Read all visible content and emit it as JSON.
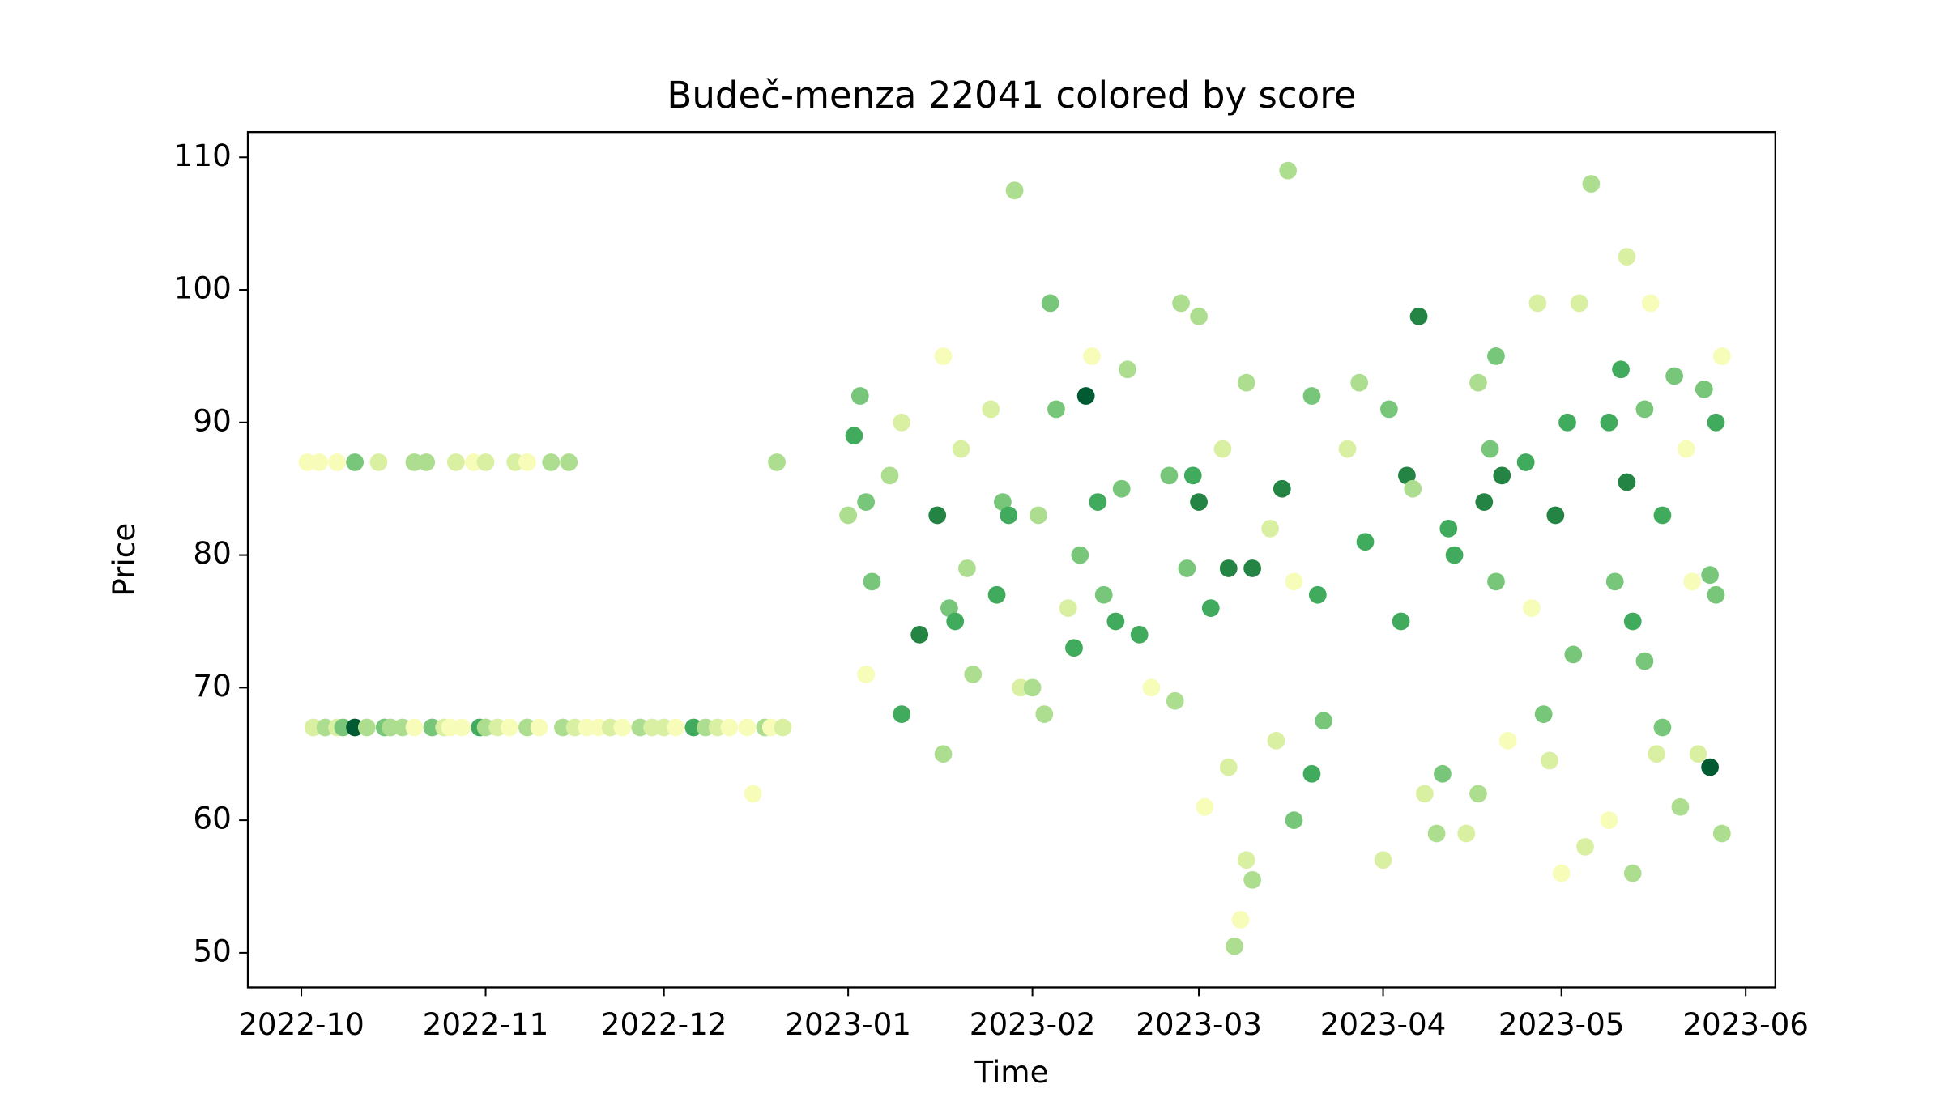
{
  "chart_data": {
    "type": "scatter",
    "title": "Budeč-menza 22041 colored by score",
    "x_label": "Time",
    "y_label": "Price",
    "x": [
      "2022-10-03",
      "2022-10-05",
      "2022-10-07",
      "2022-10-08",
      "2022-10-10",
      "2022-10-12",
      "2022-10-15",
      "2022-10-16",
      "2022-10-18",
      "2022-10-20",
      "2022-10-23",
      "2022-10-25",
      "2022-10-26",
      "2022-10-28",
      "2022-10-31",
      "2022-11-01",
      "2022-11-03",
      "2022-11-05",
      "2022-11-08",
      "2022-11-10",
      "2022-11-14",
      "2022-11-16",
      "2022-11-18",
      "2022-11-20",
      "2022-11-22",
      "2022-11-24",
      "2022-11-27",
      "2022-11-29",
      "2022-12-01",
      "2022-12-03",
      "2022-12-06",
      "2022-12-08",
      "2022-12-10",
      "2022-12-12",
      "2022-12-15",
      "2022-12-18",
      "2022-12-19",
      "2022-12-21",
      "2022-12-16",
      "2022-10-02",
      "2022-10-04",
      "2022-10-07",
      "2022-10-10",
      "2022-10-14",
      "2022-10-20",
      "2022-10-22",
      "2022-10-27",
      "2022-10-30",
      "2022-11-01",
      "2022-11-06",
      "2022-11-08",
      "2022-11-12",
      "2022-11-15",
      "2022-12-20",
      "2023-01-01",
      "2023-01-02",
      "2023-01-03",
      "2023-01-04",
      "2023-01-04",
      "2023-01-05",
      "2023-01-08",
      "2023-01-10",
      "2023-01-10",
      "2023-01-13",
      "2023-01-16",
      "2023-01-17",
      "2023-01-17",
      "2023-01-18",
      "2023-01-19",
      "2023-01-20",
      "2023-01-21",
      "2023-01-22",
      "2023-01-25",
      "2023-01-26",
      "2023-01-27",
      "2023-01-28",
      "2023-01-29",
      "2023-01-30",
      "2023-02-01",
      "2023-02-02",
      "2023-02-03",
      "2023-02-04",
      "2023-02-05",
      "2023-02-07",
      "2023-02-08",
      "2023-02-09",
      "2023-02-10",
      "2023-02-11",
      "2023-02-12",
      "2023-02-13",
      "2023-02-15",
      "2023-02-16",
      "2023-02-17",
      "2023-02-19",
      "2023-02-21",
      "2023-02-24",
      "2023-02-25",
      "2023-02-26",
      "2023-02-27",
      "2023-02-28",
      "2023-03-01",
      "2023-03-01",
      "2023-03-02",
      "2023-03-03",
      "2023-03-05",
      "2023-03-06",
      "2023-03-06",
      "2023-03-07",
      "2023-03-08",
      "2023-03-09",
      "2023-03-09",
      "2023-03-10",
      "2023-03-10",
      "2023-03-13",
      "2023-03-14",
      "2023-03-15",
      "2023-03-16",
      "2023-03-17",
      "2023-03-17",
      "2023-03-20",
      "2023-03-20",
      "2023-03-21",
      "2023-03-22",
      "2023-03-26",
      "2023-03-28",
      "2023-03-29",
      "2023-04-01",
      "2023-04-02",
      "2023-04-04",
      "2023-04-05",
      "2023-04-06",
      "2023-04-07",
      "2023-04-08",
      "2023-04-10",
      "2023-04-11",
      "2023-04-12",
      "2023-04-13",
      "2023-04-15",
      "2023-04-17",
      "2023-04-17",
      "2023-04-18",
      "2023-04-19",
      "2023-04-20",
      "2023-04-20",
      "2023-04-21",
      "2023-04-22",
      "2023-04-25",
      "2023-04-26",
      "2023-04-27",
      "2023-04-28",
      "2023-04-29",
      "2023-04-30",
      "2023-05-01",
      "2023-05-02",
      "2023-05-03",
      "2023-05-04",
      "2023-05-05",
      "2023-05-06",
      "2023-05-09",
      "2023-05-09",
      "2023-05-10",
      "2023-05-11",
      "2023-05-12",
      "2023-05-12",
      "2023-05-13",
      "2023-05-13",
      "2023-05-15",
      "2023-05-15",
      "2023-05-16",
      "2023-05-17",
      "2023-05-18",
      "2023-05-18",
      "2023-05-20",
      "2023-05-21",
      "2023-05-22",
      "2023-05-23",
      "2023-05-24",
      "2023-05-25",
      "2023-05-26",
      "2023-05-26",
      "2023-05-27",
      "2023-05-27",
      "2023-05-28",
      "2023-05-28"
    ],
    "values": [
      67,
      67,
      67,
      67,
      67,
      67,
      67,
      67,
      67,
      67,
      67,
      67,
      67,
      67,
      67,
      67,
      67,
      67,
      67,
      67,
      67,
      67,
      67,
      67,
      67,
      67,
      67,
      67,
      67,
      67,
      67,
      67,
      67,
      67,
      67,
      67,
      67,
      67,
      62,
      87,
      87,
      87,
      87,
      87,
      87,
      87,
      87,
      87,
      87,
      87,
      87,
      87,
      87,
      87,
      83,
      89,
      92,
      71,
      84,
      78,
      86,
      68,
      90,
      74,
      83,
      65,
      95,
      76,
      75,
      88,
      79,
      71,
      91,
      77,
      84,
      83,
      107.5,
      70,
      70,
      83,
      68,
      99,
      91,
      76,
      73,
      80,
      92,
      95,
      84,
      77,
      75,
      85,
      94,
      74,
      70,
      86,
      69,
      99,
      79,
      86,
      84,
      98,
      61,
      76,
      88,
      64,
      79,
      50.5,
      52.5,
      57,
      93,
      55.5,
      79,
      82,
      66,
      85,
      109,
      60,
      78,
      92,
      63.5,
      77,
      67.5,
      88,
      93,
      81,
      57,
      91,
      75,
      86,
      85,
      98,
      62,
      59,
      63.5,
      82,
      80,
      59,
      62,
      93,
      84,
      88,
      95,
      78,
      86,
      66,
      87,
      76,
      99,
      68,
      64.5,
      83,
      56,
      90,
      72.5,
      99,
      58,
      108,
      60,
      90,
      78,
      94,
      85.5,
      102.5,
      56,
      75,
      72,
      91,
      99,
      65,
      83,
      67,
      93.5,
      61,
      88,
      78,
      65,
      92.5,
      64,
      78.5,
      77,
      90,
      59,
      95
    ],
    "colors": [
      "#d9f0a3",
      "#addd8e",
      "#d9f0a3",
      "#78c679",
      "#005a32",
      "#addd8e",
      "#78c679",
      "#addd8e",
      "#addd8e",
      "#f7fcb9",
      "#78c679",
      "#d9f0a3",
      "#f7fcb9",
      "#f7fcb9",
      "#41ab5d",
      "#addd8e",
      "#d9f0a3",
      "#f7fcb9",
      "#addd8e",
      "#f7fcb9",
      "#addd8e",
      "#d9f0a3",
      "#f7fcb9",
      "#f7fcb9",
      "#d9f0a3",
      "#f7fcb9",
      "#addd8e",
      "#d9f0a3",
      "#d9f0a3",
      "#f7fcb9",
      "#41ab5d",
      "#addd8e",
      "#d9f0a3",
      "#f7fcb9",
      "#f7fcb9",
      "#addd8e",
      "#f7fcb9",
      "#d9f0a3",
      "#f7fcb9",
      "#f7fcb9",
      "#f7fcb9",
      "#f7fcb9",
      "#78c679",
      "#d9f0a3",
      "#addd8e",
      "#addd8e",
      "#d9f0a3",
      "#f7fcb9",
      "#d9f0a3",
      "#d9f0a3",
      "#f7fcb9",
      "#addd8e",
      "#addd8e",
      "#addd8e",
      "#addd8e",
      "#41ab5d",
      "#78c679",
      "#f7fcb9",
      "#78c679",
      "#78c679",
      "#addd8e",
      "#41ab5d",
      "#d9f0a3",
      "#238443",
      "#238443",
      "#addd8e",
      "#f7fcb9",
      "#78c679",
      "#41ab5d",
      "#d9f0a3",
      "#addd8e",
      "#addd8e",
      "#d9f0a3",
      "#41ab5d",
      "#78c679",
      "#41ab5d",
      "#addd8e",
      "#d9f0a3",
      "#addd8e",
      "#addd8e",
      "#addd8e",
      "#78c679",
      "#78c679",
      "#d9f0a3",
      "#41ab5d",
      "#78c679",
      "#005a32",
      "#f7fcb9",
      "#41ab5d",
      "#78c679",
      "#41ab5d",
      "#78c679",
      "#addd8e",
      "#41ab5d",
      "#f7fcb9",
      "#78c679",
      "#addd8e",
      "#addd8e",
      "#78c679",
      "#41ab5d",
      "#238443",
      "#addd8e",
      "#f7fcb9",
      "#41ab5d",
      "#d9f0a3",
      "#d9f0a3",
      "#238443",
      "#addd8e",
      "#f7fcb9",
      "#d9f0a3",
      "#addd8e",
      "#addd8e",
      "#238443",
      "#d9f0a3",
      "#d9f0a3",
      "#238443",
      "#addd8e",
      "#78c679",
      "#f7fcb9",
      "#78c679",
      "#41ab5d",
      "#41ab5d",
      "#78c679",
      "#d9f0a3",
      "#addd8e",
      "#41ab5d",
      "#d9f0a3",
      "#78c679",
      "#41ab5d",
      "#238443",
      "#addd8e",
      "#238443",
      "#d9f0a3",
      "#addd8e",
      "#78c679",
      "#41ab5d",
      "#41ab5d",
      "#d9f0a3",
      "#addd8e",
      "#addd8e",
      "#238443",
      "#78c679",
      "#78c679",
      "#78c679",
      "#238443",
      "#f7fcb9",
      "#41ab5d",
      "#f7fcb9",
      "#d9f0a3",
      "#78c679",
      "#d9f0a3",
      "#238443",
      "#f7fcb9",
      "#41ab5d",
      "#78c679",
      "#d9f0a3",
      "#d9f0a3",
      "#addd8e",
      "#f7fcb9",
      "#41ab5d",
      "#78c679",
      "#41ab5d",
      "#238443",
      "#d9f0a3",
      "#addd8e",
      "#41ab5d",
      "#78c679",
      "#78c679",
      "#f7fcb9",
      "#d9f0a3",
      "#41ab5d",
      "#78c679",
      "#78c679",
      "#addd8e",
      "#f7fcb9",
      "#f7fcb9",
      "#d9f0a3",
      "#78c679",
      "#005a32",
      "#78c679",
      "#78c679",
      "#41ab5d",
      "#addd8e",
      "#f7fcb9"
    ],
    "xlim": [
      "2022-09-22",
      "2023-06-06"
    ],
    "xticks": [
      {
        "value": "2022-10-01",
        "label": "2022-10"
      },
      {
        "value": "2022-11-01",
        "label": "2022-11"
      },
      {
        "value": "2022-12-01",
        "label": "2022-12"
      },
      {
        "value": "2023-01-01",
        "label": "2023-01"
      },
      {
        "value": "2023-02-01",
        "label": "2023-02"
      },
      {
        "value": "2023-03-01",
        "label": "2023-03"
      },
      {
        "value": "2023-04-01",
        "label": "2023-04"
      },
      {
        "value": "2023-05-01",
        "label": "2023-05"
      },
      {
        "value": "2023-06-01",
        "label": "2023-06"
      }
    ],
    "ylim": [
      47.4,
      111.9
    ],
    "yticks": [
      50,
      60,
      70,
      80,
      90,
      100,
      110
    ],
    "grid": false
  }
}
